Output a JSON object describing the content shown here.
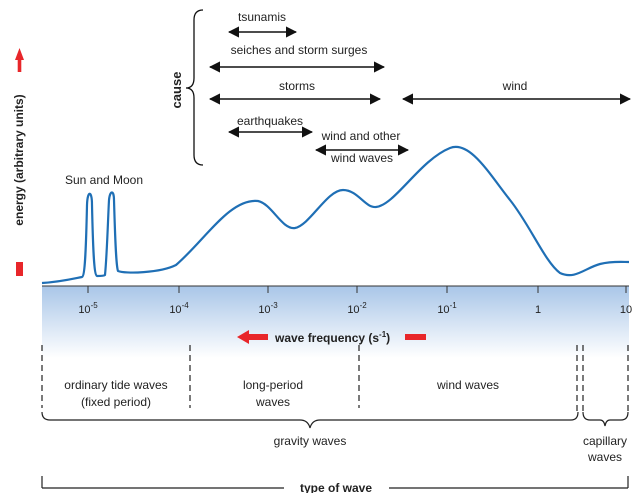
{
  "cause_heading": "cause",
  "y_axis_label": "energy (arbitrary units)",
  "peak_label": "Sun and Moon",
  "causes": {
    "tsunamis": "tsunamis",
    "seiches": "seiches and storm surges",
    "storms": "storms",
    "wind": "wind",
    "earthquakes": "earthquakes",
    "wind_other_1": "wind and other",
    "wind_other_2": "wind waves"
  },
  "frequency_ticks": [
    {
      "base": "10",
      "exp": "-5"
    },
    {
      "base": "10",
      "exp": "-4"
    },
    {
      "base": "10",
      "exp": "-3"
    },
    {
      "base": "10",
      "exp": "-2"
    },
    {
      "base": "10",
      "exp": "-1"
    },
    {
      "base": "1",
      "exp": ""
    },
    {
      "base": "10",
      "exp": ""
    }
  ],
  "x_axis": {
    "pre": "wave frequency (s",
    "exp": "-1",
    "post": ")"
  },
  "regions": {
    "tide_1": "ordinary tide waves",
    "tide_2": "(fixed period)",
    "long_1": "long-period",
    "long_2": "waves",
    "wind_waves": "wind waves",
    "gravity": "gravity waves",
    "capillary_1": "capillary",
    "capillary_2": "waves",
    "type": "type of wave"
  },
  "colors": {
    "curve": "#1f6fb5",
    "arrow_red": "#e8262a",
    "band_top": "#a9c6e8",
    "band_bottom": "#ffffff"
  }
}
